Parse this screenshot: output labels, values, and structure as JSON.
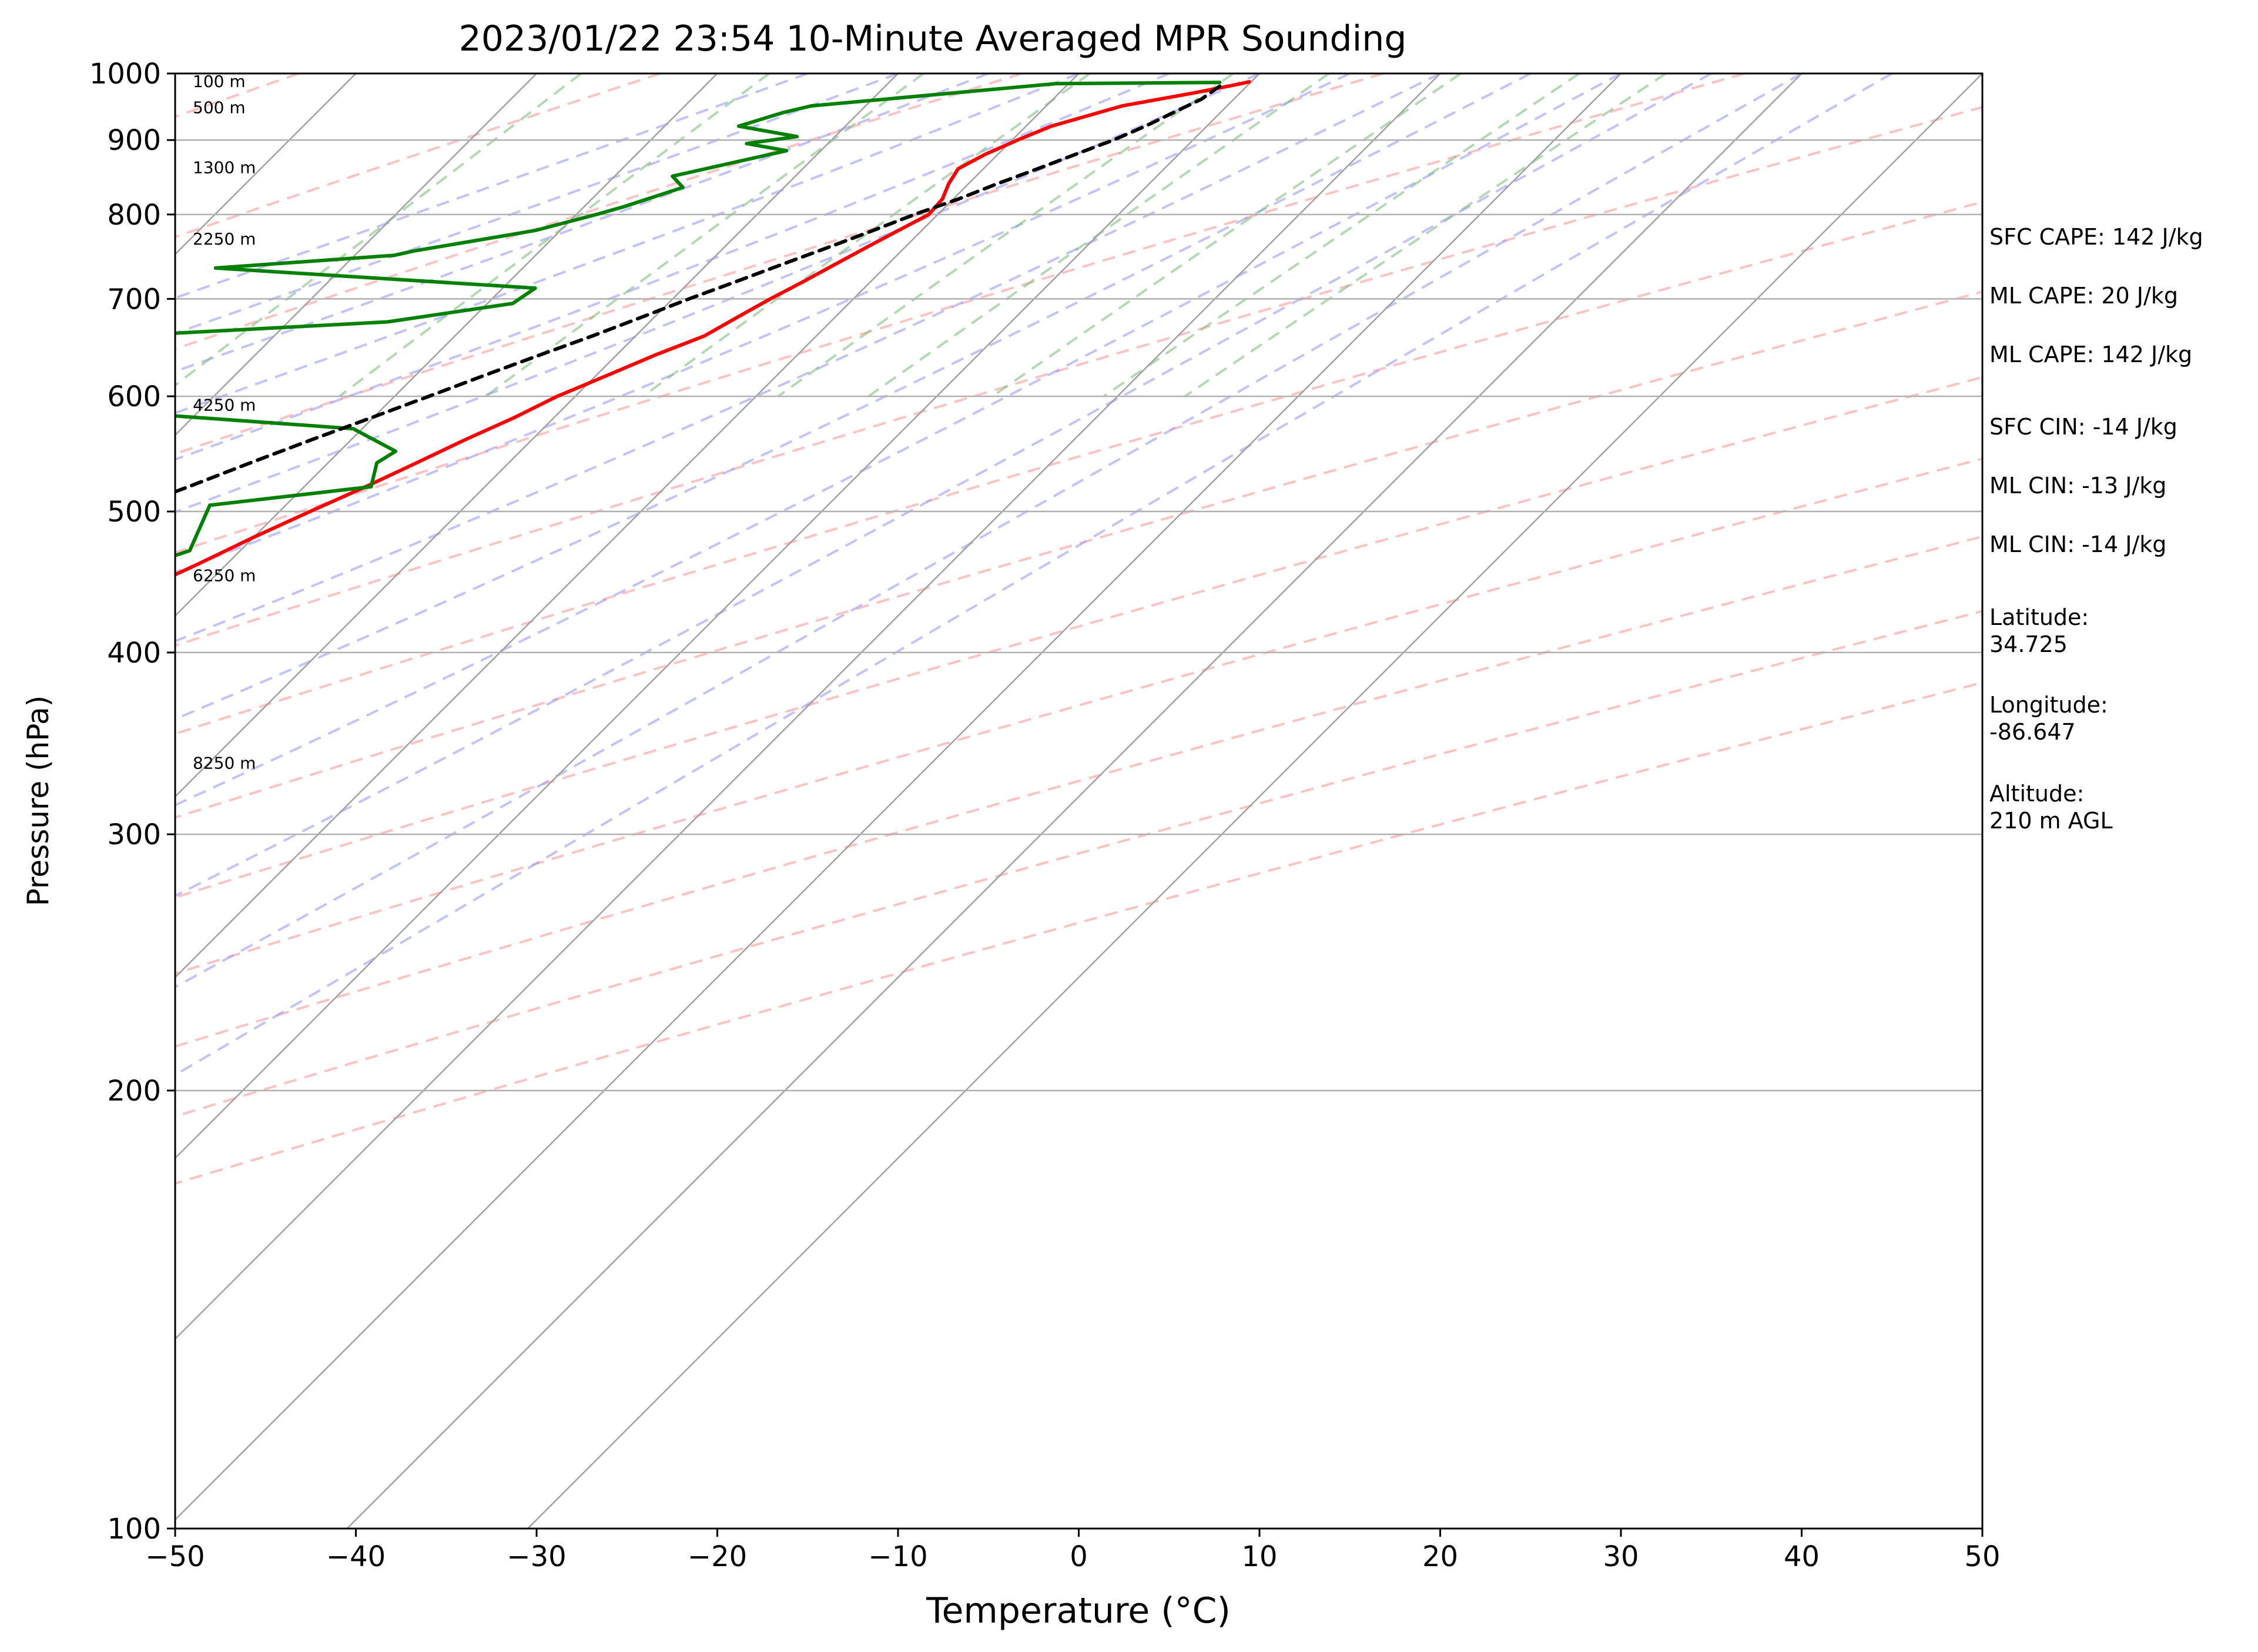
{
  "chart_data": {
    "type": "line",
    "title": "2023/01/22 23:54 10-Minute Averaged MPR Sounding",
    "xlabel": "Temperature (°C)",
    "ylabel": "Pressure (hPa)",
    "xlim": [
      -50,
      50
    ],
    "ylim": [
      1000,
      100
    ],
    "y_scale": "log",
    "skew": "skew-T log-P",
    "grid": true,
    "x_ticks": [
      "−50",
      "−40",
      "−30",
      "−20",
      "−10",
      "0",
      "10",
      "20",
      "30",
      "40",
      "50"
    ],
    "y_ticks": [
      "100",
      "200",
      "300",
      "400",
      "500",
      "600",
      "700",
      "800",
      "900",
      "1000"
    ],
    "height_labels": [
      {
        "text": "100 m",
        "p": 988
      },
      {
        "text": "500 m",
        "p": 948
      },
      {
        "text": "1300 m",
        "p": 862
      },
      {
        "text": "2250 m",
        "p": 770
      },
      {
        "text": "4250 m",
        "p": 592
      },
      {
        "text": "6250 m",
        "p": 452
      },
      {
        "text": "8250 m",
        "p": 336
      }
    ],
    "series": [
      {
        "key": "temperature",
        "color": "#ff0000",
        "points": [
          [
            987,
            9.9
          ],
          [
            983,
            9.4
          ],
          [
            970,
            7.5
          ],
          [
            950,
            4.2
          ],
          [
            920,
            1.4
          ],
          [
            900,
            0.3
          ],
          [
            880,
            -0.7
          ],
          [
            860,
            -1.4
          ],
          [
            840,
            -1.1
          ],
          [
            820,
            -0.6
          ],
          [
            800,
            -0.5
          ],
          [
            780,
            -1.3
          ],
          [
            760,
            -2.1
          ],
          [
            740,
            -2.9
          ],
          [
            720,
            -3.7
          ],
          [
            700,
            -4.6
          ],
          [
            680,
            -5.4
          ],
          [
            660,
            -6.2
          ],
          [
            640,
            -7.9
          ],
          [
            620,
            -9.4
          ],
          [
            600,
            -11.0
          ],
          [
            580,
            -12.2
          ],
          [
            560,
            -13.7
          ],
          [
            540,
            -15.1
          ],
          [
            520,
            -16.6
          ],
          [
            500,
            -18.3
          ],
          [
            480,
            -20.0
          ],
          [
            460,
            -21.6
          ],
          [
            440,
            -23.4
          ],
          [
            420,
            -25.2
          ],
          [
            400,
            -27.1
          ],
          [
            380,
            -29.1
          ],
          [
            370,
            -30.2
          ],
          [
            360,
            -31.9
          ],
          [
            350,
            -34.0
          ],
          [
            340,
            -35.9
          ],
          [
            330,
            -37.7
          ],
          [
            320,
            -39.5
          ],
          [
            310,
            -41.2
          ],
          [
            300,
            -42.8
          ],
          [
            290,
            -44.0
          ],
          [
            280,
            -45.2
          ],
          [
            270,
            -46.6
          ],
          [
            260,
            -48.0
          ],
          [
            255,
            -48.7
          ]
        ]
      },
      {
        "key": "dewpoint",
        "color": "#008000",
        "points": [
          [
            986,
            8.3
          ],
          [
            984,
            -0.7
          ],
          [
            950,
            -13.0
          ],
          [
            940,
            -14.2
          ],
          [
            920,
            -15.9
          ],
          [
            905,
            -12.1
          ],
          [
            895,
            -14.5
          ],
          [
            885,
            -11.9
          ],
          [
            850,
            -16.8
          ],
          [
            835,
            -15.6
          ],
          [
            810,
            -17.8
          ],
          [
            800,
            -18.9
          ],
          [
            780,
            -21.4
          ],
          [
            755,
            -27.0
          ],
          [
            750,
            -27.8
          ],
          [
            735,
            -37.0
          ],
          [
            712,
            -18.2
          ],
          [
            695,
            -18.6
          ],
          [
            675,
            -24.5
          ],
          [
            650,
            -47.9
          ],
          [
            645,
            -52.0
          ],
          [
            615,
            -61.0
          ],
          [
            610,
            -61.0
          ],
          [
            600,
            -47.3
          ],
          [
            570,
            -20.5
          ],
          [
            550,
            -16.9
          ],
          [
            540,
            -17.3
          ],
          [
            520,
            -16.3
          ],
          [
            505,
            -24.2
          ],
          [
            470,
            -22.8
          ],
          [
            440,
            -27.4
          ],
          [
            420,
            -29.1
          ],
          [
            400,
            -31.0
          ],
          [
            380,
            -33.2
          ],
          [
            365,
            -35.2
          ],
          [
            350,
            -37.7
          ],
          [
            335,
            -40.3
          ],
          [
            320,
            -43.0
          ],
          [
            310,
            -44.9
          ],
          [
            303,
            -45.6
          ],
          [
            295,
            -49.0
          ],
          [
            282,
            -53.1
          ],
          [
            272,
            -55.8
          ],
          [
            268,
            -56.4
          ],
          [
            260,
            -55.2
          ],
          [
            256,
            -54.0
          ]
        ]
      },
      {
        "key": "parcel",
        "color": "#000000",
        "dashed": true,
        "points": [
          [
            980,
            8.5
          ],
          [
            960,
            8.2
          ],
          [
            940,
            7.4
          ],
          [
            920,
            6.6
          ],
          [
            900,
            5.6
          ],
          [
            880,
            4.3
          ],
          [
            860,
            3.0
          ],
          [
            840,
            1.6
          ],
          [
            820,
            0.3
          ],
          [
            800,
            -1.3
          ],
          [
            780,
            -2.7
          ],
          [
            760,
            -4.2
          ],
          [
            740,
            -5.8
          ],
          [
            720,
            -7.4
          ],
          [
            700,
            -9.1
          ],
          [
            680,
            -10.7
          ],
          [
            660,
            -12.4
          ],
          [
            640,
            -14.3
          ],
          [
            620,
            -16.2
          ],
          [
            600,
            -18.1
          ],
          [
            580,
            -20.1
          ],
          [
            560,
            -22.2
          ],
          [
            540,
            -24.3
          ],
          [
            520,
            -26.4
          ],
          [
            500,
            -28.7
          ],
          [
            480,
            -31.0
          ],
          [
            460,
            -33.4
          ],
          [
            440,
            -36.0
          ],
          [
            420,
            -38.6
          ],
          [
            400,
            -41.5
          ],
          [
            380,
            -44.4
          ],
          [
            360,
            -47.4
          ],
          [
            340,
            -50.6
          ],
          [
            320,
            -54.0
          ],
          [
            300,
            -57.5
          ],
          [
            280,
            -61.2
          ],
          [
            260,
            -65.1
          ]
        ]
      }
    ]
  },
  "info_panel": {
    "sfc_cape": "SFC CAPE: 142 J/kg",
    "ml_cape_1": "ML CAPE: 20 J/kg",
    "ml_cape_2": "ML CAPE: 142 J/kg",
    "sfc_cin": "SFC CIN: -14 J/kg",
    "ml_cin_1": "ML CIN: -13 J/kg",
    "ml_cin_2": "ML CIN: -14 J/kg",
    "latitude_label": "Latitude:",
    "latitude_value": "34.725",
    "longitude_label": "Longitude:",
    "longitude_value": "-86.647",
    "altitude_label": "Altitude:",
    "altitude_value": "210 m AGL"
  }
}
